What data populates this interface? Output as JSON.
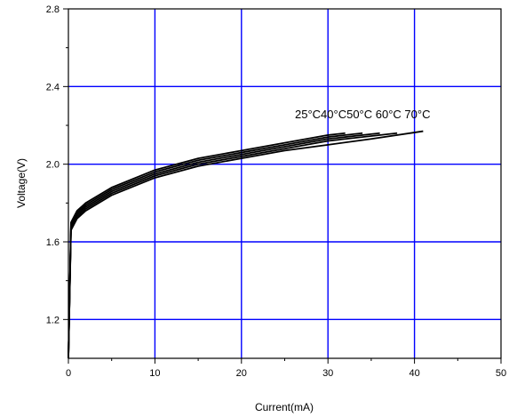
{
  "chart_data": {
    "type": "line",
    "title": "",
    "xlabel": "Current(mA)",
    "ylabel": "Voltage(V)",
    "xlim": [
      0,
      50
    ],
    "ylim": [
      1.0,
      2.8
    ],
    "xticks": [
      0,
      10,
      20,
      30,
      40,
      50
    ],
    "yticks": [
      1.2,
      1.6,
      2.0,
      2.4,
      2.8
    ],
    "grid": true,
    "grid_color": "#0000ff",
    "line_color": "#000000",
    "series_label_text": "25°C40°C50°C 60°C 70°C",
    "series": [
      {
        "x": [
          0,
          0.3,
          1,
          2,
          5,
          10,
          15,
          20,
          25,
          30,
          32
        ],
        "y": [
          1.0,
          1.7,
          1.76,
          1.8,
          1.88,
          1.97,
          2.03,
          2.07,
          2.11,
          2.15,
          2.16
        ]
      },
      {
        "x": [
          0,
          0.3,
          1,
          2,
          5,
          10,
          15,
          20,
          25,
          30,
          34
        ],
        "y": [
          1.0,
          1.69,
          1.75,
          1.79,
          1.87,
          1.96,
          2.02,
          2.06,
          2.1,
          2.14,
          2.16
        ]
      },
      {
        "x": [
          0,
          0.3,
          1,
          2,
          5,
          10,
          15,
          20,
          25,
          30,
          36
        ],
        "y": [
          1.0,
          1.68,
          1.74,
          1.78,
          1.86,
          1.95,
          2.01,
          2.05,
          2.09,
          2.13,
          2.16
        ]
      },
      {
        "x": [
          0,
          0.3,
          1,
          2,
          5,
          10,
          15,
          20,
          25,
          30,
          38
        ],
        "y": [
          1.0,
          1.67,
          1.73,
          1.77,
          1.85,
          1.94,
          2.0,
          2.04,
          2.08,
          2.12,
          2.16
        ]
      },
      {
        "x": [
          0,
          0.3,
          1,
          2,
          5,
          10,
          15,
          20,
          25,
          30,
          35,
          41
        ],
        "y": [
          1.0,
          1.66,
          1.72,
          1.76,
          1.84,
          1.93,
          1.99,
          2.03,
          2.07,
          2.1,
          2.13,
          2.17
        ]
      }
    ]
  }
}
